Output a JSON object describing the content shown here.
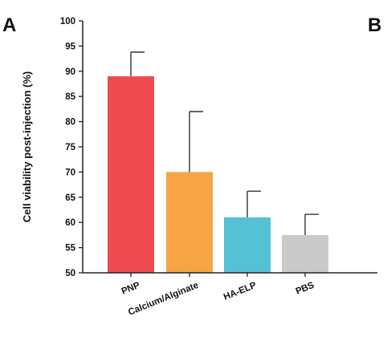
{
  "panels": {
    "left": "A",
    "right": "B"
  },
  "chart_data": {
    "type": "bar",
    "title": "",
    "xlabel": "",
    "ylabel": "Cell viability post-injection (%)",
    "ylim": [
      50,
      100
    ],
    "yticks": [
      50,
      55,
      60,
      65,
      70,
      75,
      80,
      85,
      90,
      95,
      100
    ],
    "categories": [
      "PNP",
      "Calcium/Alginate",
      "HA-ELP",
      "PBS"
    ],
    "values": [
      89,
      70,
      61,
      57.5
    ],
    "error_upper": [
      4.8,
      12,
      5.2,
      4.1
    ],
    "colors": [
      "#ee4a50",
      "#f6a444",
      "#54c2d4",
      "#cacaca"
    ],
    "grid": false,
    "legend": "none"
  }
}
